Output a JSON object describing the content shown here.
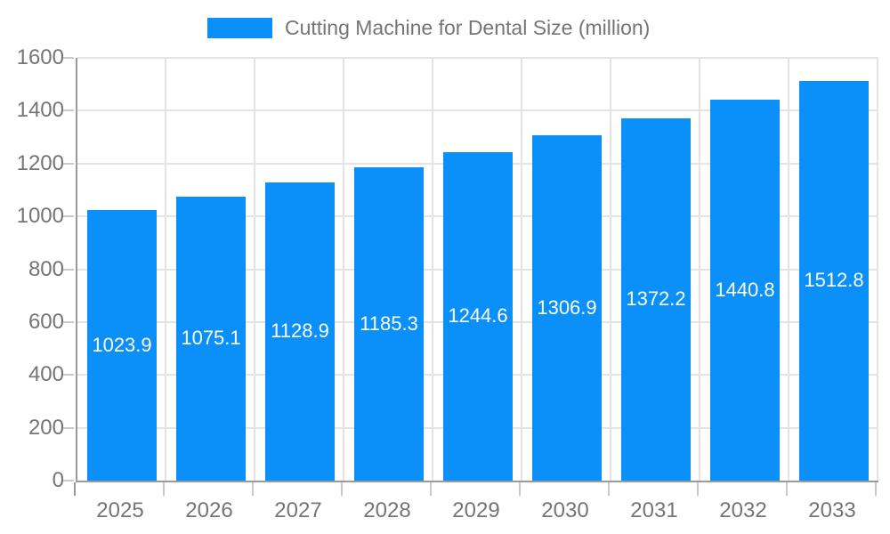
{
  "legend": {
    "label": "Cutting Machine for Dental Size (million)"
  },
  "colors": {
    "bar": "#0a90f8",
    "text": "#757575",
    "axis_line": "#9a9a9a",
    "grid": "#e4e4e4",
    "tick": "#c9c9c9",
    "value_label": "#ffffff",
    "background": "#ffffff"
  },
  "chart_data": {
    "type": "bar",
    "title": "Cutting Machine for Dental Size (million)",
    "categories": [
      "2025",
      "2026",
      "2027",
      "2028",
      "2029",
      "2030",
      "2031",
      "2032",
      "2033"
    ],
    "values": [
      1023.9,
      1075.1,
      1128.9,
      1185.3,
      1244.6,
      1306.9,
      1372.2,
      1440.8,
      1512.8
    ],
    "series_name": "Cutting Machine for Dental Size (million)",
    "xlabel": "",
    "ylabel": "",
    "ylim": [
      0,
      1600
    ],
    "ytick_step": 200,
    "yticks": [
      0,
      200,
      400,
      600,
      800,
      1000,
      1200,
      1400,
      1600
    ],
    "grid": true,
    "legend_position": "top",
    "value_labels": "inside-center"
  }
}
